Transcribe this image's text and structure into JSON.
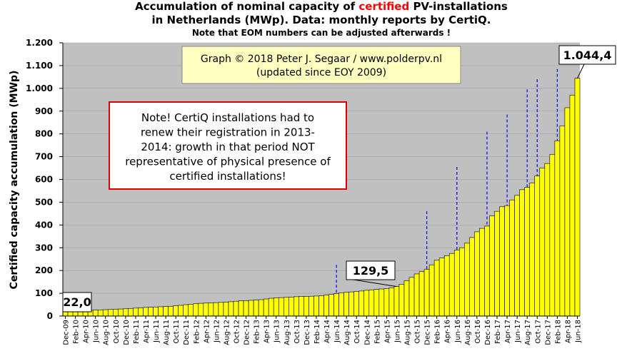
{
  "chart_data": {
    "type": "bar",
    "title_parts": [
      "Accumulation  of nominal  capacity  of ",
      "certified",
      " PV-installations"
    ],
    "title_line2": "in Netherlands (MWp). Data: monthly  reports by CertiQ.",
    "subtitle": "Note that EOM numbers can be adjusted afterwards  !",
    "y_label": "Certified capacity accumulation (MWp)",
    "copyright": [
      "Graph © 2018 Peter J. Segaar / www.polderpv.nl",
      "(updated since EOY 2009)"
    ],
    "note": [
      "Note! CertiQ installations had to",
      "renew their registration in 2013-",
      "2014:  growth in that period NOT",
      "representative of physical presence of",
      "certified installations!"
    ],
    "categories": [
      "Dec-09",
      null,
      "Feb-10",
      null,
      "Apr-10",
      null,
      "Jun-10",
      null,
      "Aug-10",
      null,
      "Oct-10",
      null,
      "Dec-10",
      null,
      "Feb-11",
      null,
      "Apr-11",
      null,
      "Jun-11",
      null,
      "Aug-11",
      null,
      "Oct-11",
      null,
      "Dec-11",
      null,
      "Feb-12",
      null,
      "Apr-12",
      null,
      "Jun-12",
      null,
      "Aug-12",
      null,
      "Oct-12",
      null,
      "Dec-12",
      null,
      "Feb-13",
      null,
      "Apr-13",
      null,
      "Jun-13",
      null,
      "Aug-13",
      null,
      "Oct-13",
      null,
      "Dec-13",
      null,
      "Feb-14",
      null,
      "Apr-14",
      null,
      "Jun-14",
      null,
      "Aug-14",
      null,
      "Oct-14",
      null,
      "Dec-14",
      null,
      "Feb-15",
      null,
      "Apr-15",
      null,
      "Jun-15",
      null,
      "Aug-15",
      null,
      "Oct-15",
      null,
      "Dec-15",
      null,
      "Feb-16",
      null,
      "Apr-16",
      null,
      "Jun-16",
      null,
      "Aug-16",
      null,
      "Oct-16",
      null,
      "Dec-16",
      null,
      "Feb-17",
      null,
      "Apr-17",
      null,
      "Jun-17",
      null,
      "Aug-17",
      null,
      "Oct-17",
      null,
      "Dec-17",
      null,
      "Feb-18",
      null,
      "Apr-18",
      null,
      "Jun-18"
    ],
    "values": [
      22,
      23,
      23,
      24,
      24,
      25,
      26,
      27,
      28,
      29,
      30,
      31,
      32,
      33,
      35,
      36,
      38,
      39,
      40,
      41,
      42,
      43,
      45,
      47,
      50,
      52,
      54,
      56,
      57,
      58,
      59,
      60,
      61,
      63,
      65,
      67,
      68,
      69,
      70,
      72,
      75,
      78,
      80,
      81,
      82,
      83,
      85,
      86,
      86,
      87,
      88,
      89,
      92,
      95,
      98,
      102,
      104,
      106,
      108,
      110,
      113,
      115,
      117,
      119,
      121,
      124,
      129.5,
      140,
      155,
      170,
      185,
      195,
      205,
      225,
      245,
      255,
      265,
      275,
      290,
      300,
      320,
      345,
      370,
      385,
      395,
      440,
      460,
      480,
      485,
      510,
      530,
      555,
      565,
      585,
      615,
      650,
      670,
      710,
      770,
      835,
      915,
      970,
      1044.4
    ],
    "value_labels": {
      "0": "22,0",
      "66": "129,5",
      "102": "1.044,4"
    },
    "color": "#ffff00",
    "projections": {
      "color": "#0000ff",
      "categories": [
        54,
        72,
        78,
        84,
        88,
        92,
        94,
        98
      ],
      "values": [
        225,
        460,
        655,
        810,
        885,
        995,
        1040,
        1085
      ]
    },
    "ylim": [
      0,
      1200
    ],
    "yticks": [
      0,
      100,
      200,
      300,
      400,
      500,
      600,
      700,
      800,
      900,
      {
        "value": 1000,
        "label": "1.000"
      },
      {
        "value": 1100,
        "label": "1.100"
      },
      {
        "value": 1200,
        "label": "1.200"
      }
    ],
    "grid": true,
    "plot_background": "#c0c0c0"
  }
}
